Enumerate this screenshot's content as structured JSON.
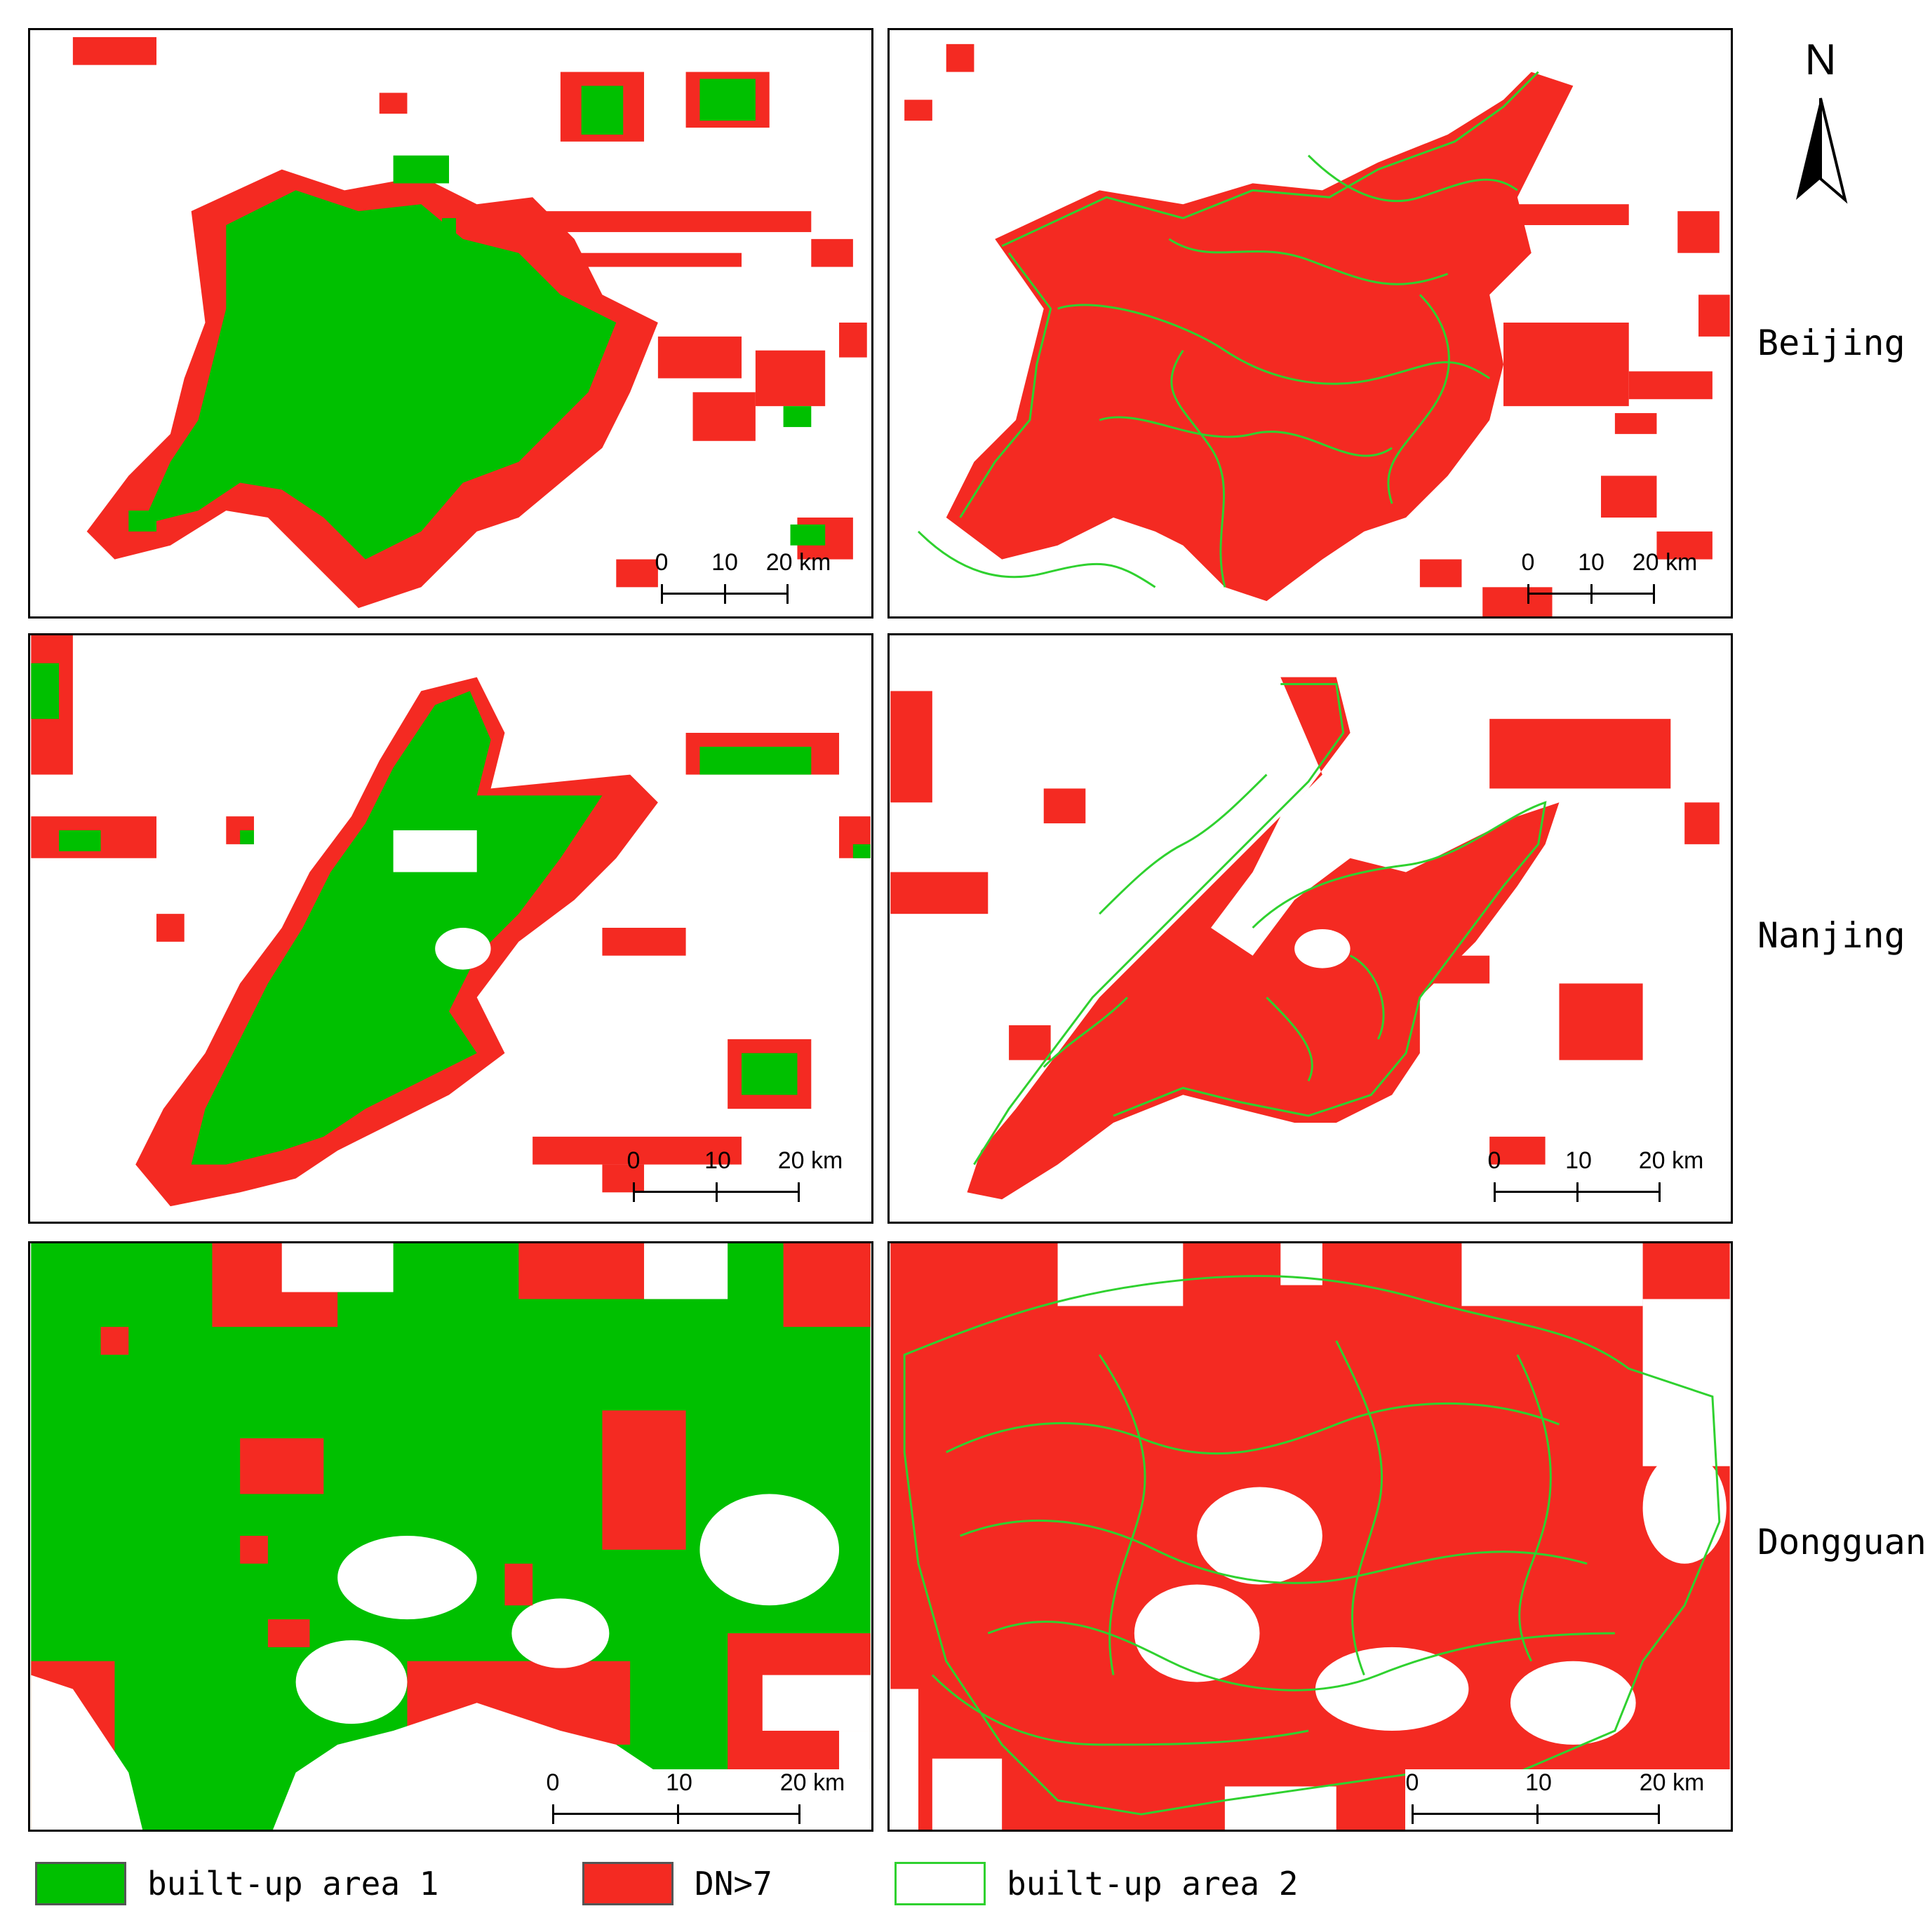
{
  "colors": {
    "built_up_1": "#00c000",
    "dn_gt_7": "#f42a22",
    "built_up_2_outline": "#2fd12f",
    "frame": "#000000",
    "background": "#ffffff"
  },
  "north_arrow": {
    "letter": "N",
    "icon": "north-arrow-icon"
  },
  "rows": [
    {
      "city": "Beijing"
    },
    {
      "city": "Nanjing"
    },
    {
      "city": "Dongguan"
    }
  ],
  "scale_bar": {
    "ticks": [
      "0",
      "10",
      "20 km"
    ]
  },
  "legend": [
    {
      "label": "built-up area 1",
      "style": "fill-green"
    },
    {
      "label": "DN>7",
      "style": "fill-red"
    },
    {
      "label": "built-up area 2",
      "style": "outline-green"
    }
  ]
}
